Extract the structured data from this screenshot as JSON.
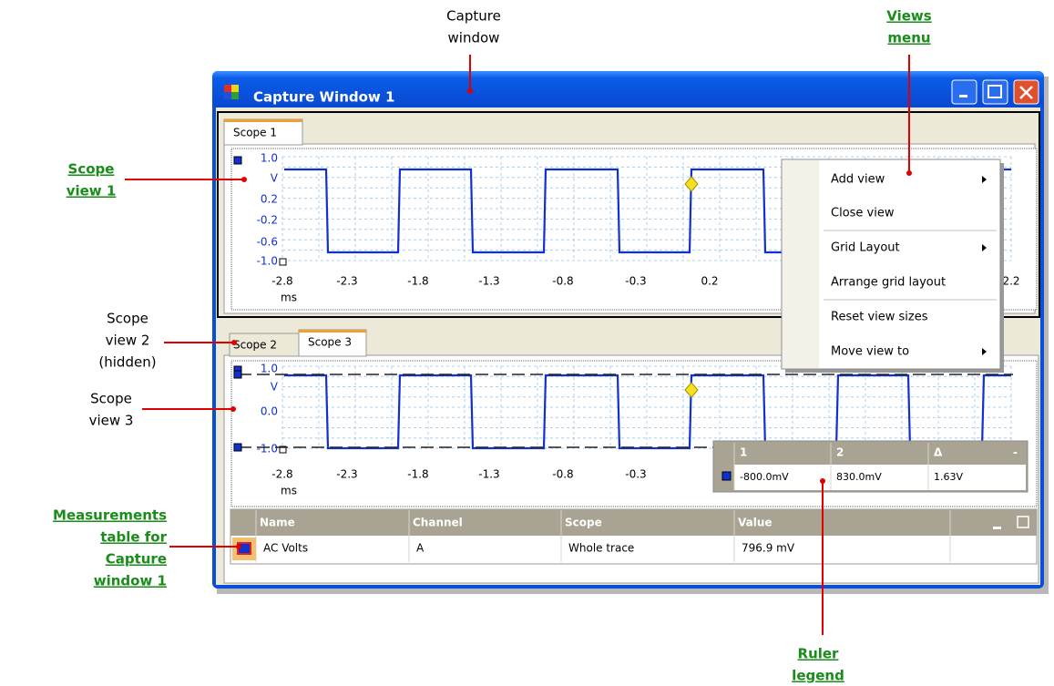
{
  "annotations": {
    "capture_window": [
      "Capture",
      "window"
    ],
    "views_menu": [
      "Views",
      "menu"
    ],
    "scope_view_1": [
      "Scope",
      "view 1"
    ],
    "scope_view_2": [
      "Scope",
      "view 2",
      "(hidden)"
    ],
    "scope_view_3": [
      "Scope",
      "view 3"
    ],
    "measurements_table": [
      "Measurements",
      "table for",
      "Capture",
      "window 1"
    ],
    "ruler_legend": [
      "Ruler",
      "legend"
    ]
  },
  "window": {
    "title": "Capture Window 1"
  },
  "tabs_top": [
    "Scope 1"
  ],
  "tabs_bottom": [
    "Scope 2",
    "Scope 3"
  ],
  "scope1": {
    "y_labels": [
      "1.0",
      "V",
      "0.2",
      "-0.2",
      "-0.6",
      "-1.0"
    ],
    "x_labels": [
      "-2.8",
      "-2.3",
      "-1.8",
      "-1.3",
      "-0.8",
      "-0.3",
      "0.2",
      "2.2"
    ],
    "x_unit": "ms"
  },
  "scope3": {
    "y_labels": [
      "1.0",
      "V",
      "0.0",
      "-1.0"
    ],
    "x_labels": [
      "-2.8",
      "-2.3",
      "-1.8",
      "-1.3",
      "-0.8",
      "-0.3"
    ],
    "x_unit": "ms"
  },
  "menu": {
    "items": [
      "Add view",
      "Close view",
      "Grid Layout",
      "Arrange grid layout",
      "Reset view sizes",
      "Move view to"
    ]
  },
  "ruler_legend": {
    "headers": [
      "1",
      "2",
      "Δ",
      "-"
    ],
    "row": [
      "-800.0mV",
      "830.0mV",
      "1.63V"
    ]
  },
  "measurements": {
    "headers": [
      "Name",
      "Channel",
      "Scope",
      "Value"
    ],
    "rows": [
      [
        "AC Volts",
        "A",
        "Whole trace",
        "796.9 mV"
      ]
    ]
  }
}
